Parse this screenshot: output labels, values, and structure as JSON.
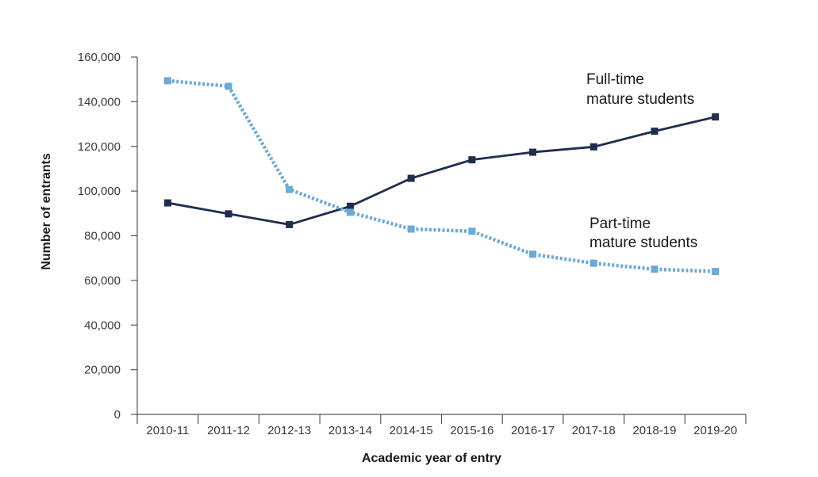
{
  "chart_data": {
    "type": "line",
    "xlabel": "Academic year of entry",
    "ylabel": "Number of entrants",
    "ylim": [
      0,
      160000
    ],
    "yticks": [
      0,
      20000,
      40000,
      60000,
      80000,
      100000,
      120000,
      140000,
      160000
    ],
    "ytick_labels": [
      "0",
      "20,000",
      "40,000",
      "60,000",
      "80,000",
      "100,000",
      "120,000",
      "140,000",
      "160,000"
    ],
    "categories": [
      "2010-11",
      "2011-12",
      "2012-13",
      "2013-14",
      "2014-15",
      "2015-16",
      "2016-17",
      "2017-18",
      "2018-19",
      "2019-20"
    ],
    "grid": false,
    "series": [
      {
        "name_lines": [
          "Full-time",
          "mature students"
        ],
        "color": "#1f2d4f",
        "style": "solid",
        "marker": "square",
        "values": [
          94700,
          89800,
          85000,
          93200,
          105700,
          114000,
          117400,
          119800,
          126800,
          133200
        ]
      },
      {
        "name_lines": [
          "Part-time",
          "mature students"
        ],
        "color": "#6aaad8",
        "style": "dotted",
        "marker": "square",
        "values": [
          149400,
          146900,
          100700,
          90500,
          83000,
          82000,
          71700,
          67700,
          65000,
          64000
        ]
      }
    ]
  }
}
